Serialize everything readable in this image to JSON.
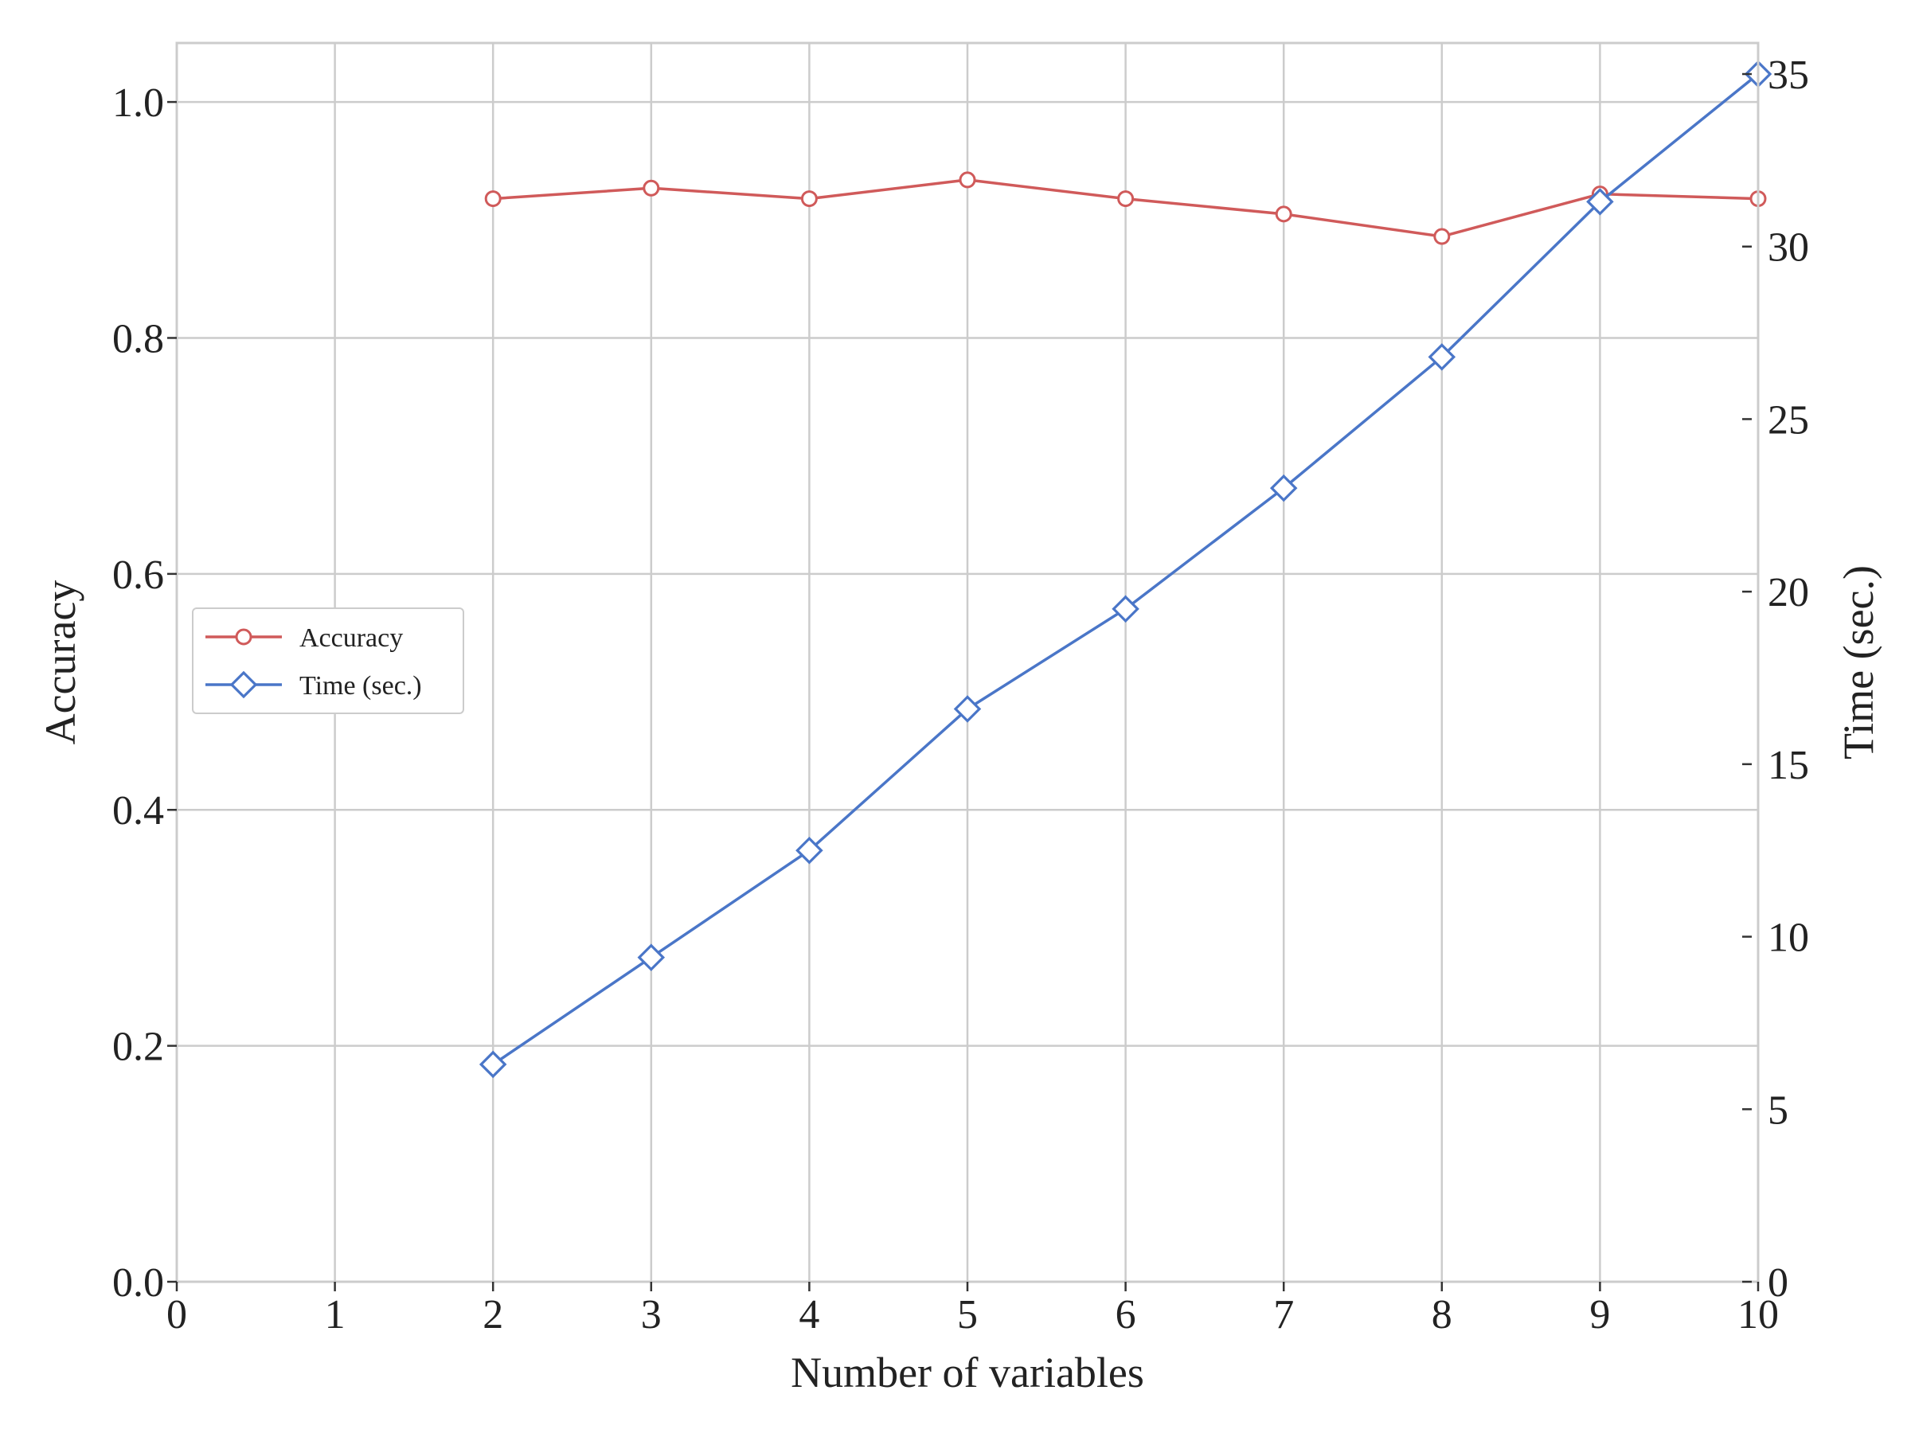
{
  "chart_data": {
    "type": "line",
    "xlabel": "Number of variables",
    "ylabel": "Accuracy",
    "y2label": "Time (sec.)",
    "xlim": [
      0,
      10
    ],
    "ylim": [
      0,
      1.05
    ],
    "y2lim": [
      0,
      35.9
    ],
    "xticks": [
      0,
      1,
      2,
      3,
      4,
      5,
      6,
      7,
      8,
      9,
      10
    ],
    "yticks": [
      "0.0",
      "0.2",
      "0.4",
      "0.6",
      "0.8",
      "1.0"
    ],
    "y2ticks": [
      "0",
      "5",
      "10",
      "15",
      "20",
      "25",
      "30",
      "35"
    ],
    "grid": true,
    "legend_position": "center-left",
    "series": [
      {
        "name": "Accuracy",
        "axis": "left",
        "color": "#d05a5a",
        "marker": "circle",
        "x": [
          2,
          3,
          4,
          5,
          6,
          7,
          8,
          9,
          10
        ],
        "values": [
          0.918,
          0.927,
          0.918,
          0.934,
          0.918,
          0.905,
          0.886,
          0.922,
          0.918
        ]
      },
      {
        "name": "Time (sec.)",
        "axis": "right",
        "color": "#4a76c8",
        "marker": "diamond",
        "x": [
          2,
          3,
          4,
          5,
          6,
          7,
          8,
          9,
          10
        ],
        "values": [
          6.3,
          9.4,
          12.5,
          16.6,
          19.5,
          23.0,
          26.8,
          31.3,
          35.0
        ]
      }
    ]
  }
}
